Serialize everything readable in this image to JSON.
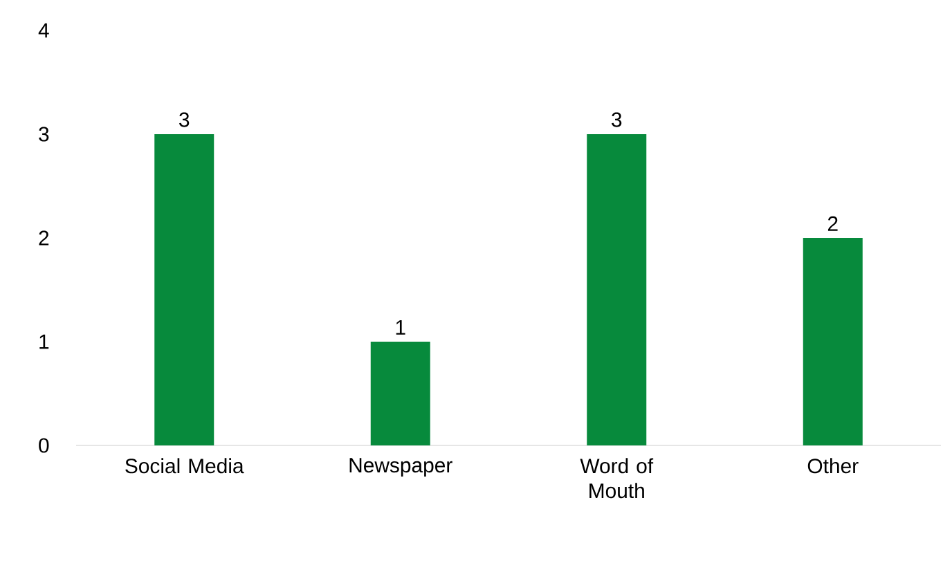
{
  "chart_data": {
    "type": "bar",
    "categories": [
      "Social Media",
      "Newspaper",
      "Word of Mouth",
      "Other"
    ],
    "values": [
      3,
      1,
      3,
      2
    ],
    "color": "#078a3c",
    "ylim": [
      0,
      4
    ],
    "yticks": [
      0,
      1,
      2,
      3,
      4
    ],
    "data_labels": true
  }
}
